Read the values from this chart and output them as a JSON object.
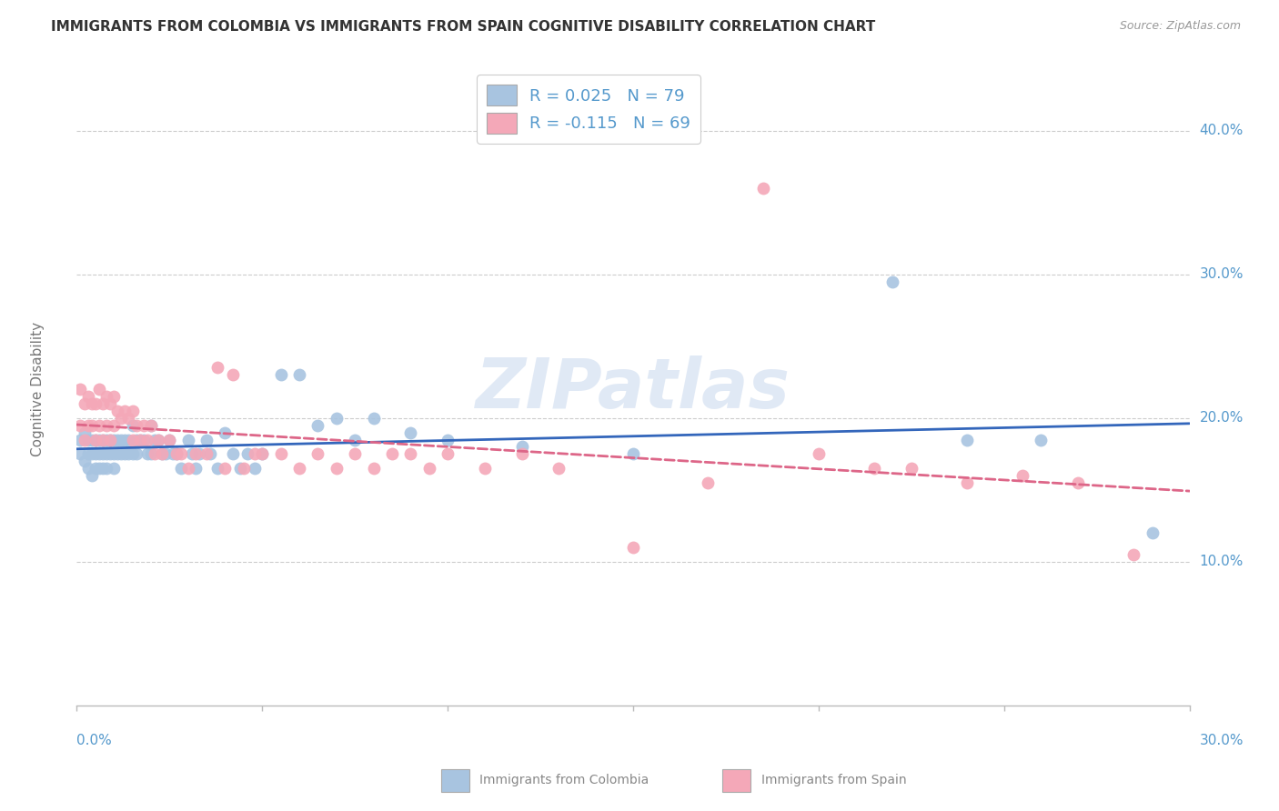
{
  "title": "IMMIGRANTS FROM COLOMBIA VS IMMIGRANTS FROM SPAIN COGNITIVE DISABILITY CORRELATION CHART",
  "source": "Source: ZipAtlas.com",
  "ylabel": "Cognitive Disability",
  "right_yticks": [
    "10.0%",
    "20.0%",
    "30.0%",
    "40.0%"
  ],
  "right_ytick_values": [
    0.1,
    0.2,
    0.3,
    0.4
  ],
  "colombia_color": "#a8c4e0",
  "spain_color": "#f4a8b8",
  "trendline_colombia_color": "#3366bb",
  "trendline_spain_color": "#dd6688",
  "background_color": "#ffffff",
  "grid_color": "#cccccc",
  "title_color": "#333333",
  "axis_label_color": "#5599cc",
  "xlim": [
    0.0,
    0.3
  ],
  "ylim": [
    0.0,
    0.44
  ],
  "colombia_R": 0.025,
  "colombia_N": 79,
  "spain_R": -0.115,
  "spain_N": 69,
  "colombia_scatter_x": [
    0.001,
    0.001,
    0.002,
    0.002,
    0.003,
    0.003,
    0.003,
    0.004,
    0.004,
    0.004,
    0.005,
    0.005,
    0.005,
    0.006,
    0.006,
    0.006,
    0.007,
    0.007,
    0.007,
    0.008,
    0.008,
    0.008,
    0.009,
    0.009,
    0.01,
    0.01,
    0.01,
    0.011,
    0.011,
    0.012,
    0.012,
    0.013,
    0.013,
    0.014,
    0.014,
    0.015,
    0.015,
    0.016,
    0.016,
    0.017,
    0.018,
    0.019,
    0.02,
    0.02,
    0.021,
    0.022,
    0.023,
    0.024,
    0.025,
    0.026,
    0.027,
    0.028,
    0.03,
    0.031,
    0.032,
    0.033,
    0.035,
    0.036,
    0.038,
    0.04,
    0.042,
    0.044,
    0.046,
    0.048,
    0.05,
    0.055,
    0.06,
    0.065,
    0.07,
    0.075,
    0.08,
    0.09,
    0.1,
    0.12,
    0.15,
    0.22,
    0.24,
    0.26,
    0.29
  ],
  "colombia_scatter_y": [
    0.185,
    0.175,
    0.19,
    0.17,
    0.185,
    0.175,
    0.165,
    0.185,
    0.175,
    0.16,
    0.185,
    0.175,
    0.165,
    0.185,
    0.175,
    0.165,
    0.185,
    0.175,
    0.165,
    0.185,
    0.175,
    0.165,
    0.185,
    0.175,
    0.185,
    0.175,
    0.165,
    0.185,
    0.175,
    0.185,
    0.175,
    0.185,
    0.175,
    0.185,
    0.175,
    0.195,
    0.175,
    0.185,
    0.175,
    0.185,
    0.185,
    0.175,
    0.195,
    0.175,
    0.185,
    0.185,
    0.175,
    0.175,
    0.185,
    0.175,
    0.175,
    0.165,
    0.185,
    0.175,
    0.165,
    0.175,
    0.185,
    0.175,
    0.165,
    0.19,
    0.175,
    0.165,
    0.175,
    0.165,
    0.175,
    0.23,
    0.23,
    0.195,
    0.2,
    0.185,
    0.2,
    0.19,
    0.185,
    0.18,
    0.175,
    0.295,
    0.185,
    0.185,
    0.12
  ],
  "spain_scatter_x": [
    0.001,
    0.001,
    0.002,
    0.002,
    0.003,
    0.003,
    0.004,
    0.004,
    0.005,
    0.005,
    0.006,
    0.006,
    0.007,
    0.007,
    0.008,
    0.008,
    0.009,
    0.009,
    0.01,
    0.01,
    0.011,
    0.012,
    0.013,
    0.014,
    0.015,
    0.015,
    0.016,
    0.017,
    0.018,
    0.019,
    0.02,
    0.021,
    0.022,
    0.023,
    0.025,
    0.027,
    0.028,
    0.03,
    0.032,
    0.035,
    0.038,
    0.04,
    0.042,
    0.045,
    0.048,
    0.05,
    0.055,
    0.06,
    0.065,
    0.07,
    0.075,
    0.08,
    0.085,
    0.09,
    0.095,
    0.1,
    0.11,
    0.12,
    0.13,
    0.15,
    0.17,
    0.185,
    0.2,
    0.215,
    0.225,
    0.24,
    0.255,
    0.27,
    0.285
  ],
  "spain_scatter_y": [
    0.22,
    0.195,
    0.21,
    0.185,
    0.215,
    0.195,
    0.21,
    0.195,
    0.21,
    0.185,
    0.22,
    0.195,
    0.21,
    0.185,
    0.215,
    0.195,
    0.21,
    0.185,
    0.215,
    0.195,
    0.205,
    0.2,
    0.205,
    0.2,
    0.205,
    0.185,
    0.195,
    0.185,
    0.195,
    0.185,
    0.195,
    0.175,
    0.185,
    0.175,
    0.185,
    0.175,
    0.175,
    0.165,
    0.175,
    0.175,
    0.235,
    0.165,
    0.23,
    0.165,
    0.175,
    0.175,
    0.175,
    0.165,
    0.175,
    0.165,
    0.175,
    0.165,
    0.175,
    0.175,
    0.165,
    0.175,
    0.165,
    0.175,
    0.165,
    0.11,
    0.155,
    0.36,
    0.175,
    0.165,
    0.165,
    0.155,
    0.16,
    0.155,
    0.105
  ]
}
